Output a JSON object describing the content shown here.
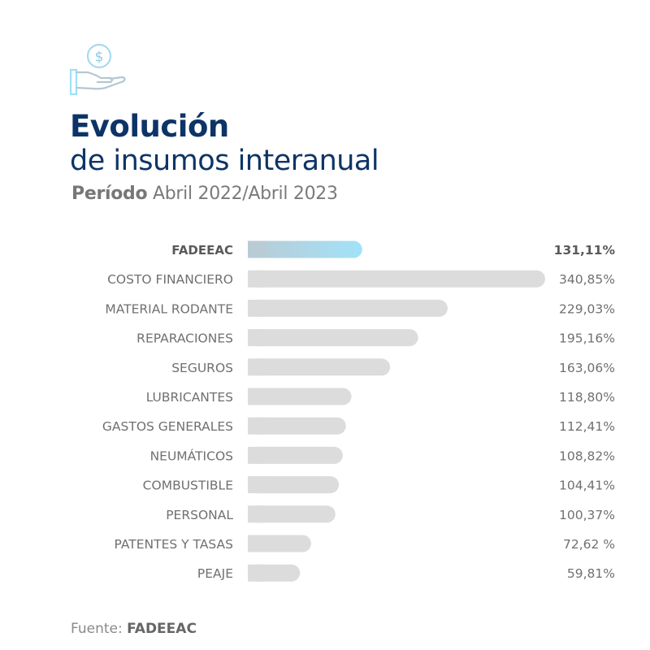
{
  "header": {
    "icon": "hand-with-dollar-coin-icon",
    "title_line1": "Evolución",
    "title_line2": "de insumos interanual",
    "period_label": "Período",
    "period_value": "Abril 2022/Abril 2023"
  },
  "chart_data": {
    "type": "bar",
    "orientation": "horizontal",
    "title": "Evolución de insumos interanual",
    "subtitle": "Período Abril 2022/Abril 2023",
    "categories": [
      "FADEEAC",
      "COSTO FINANCIERO",
      "MATERIAL RODANTE",
      "REPARACIONES",
      "SEGUROS",
      "LUBRICANTES",
      "GASTOS GENERALES",
      "NEUMÁTICOS",
      "COMBUSTIBLE",
      "PERSONAL",
      "PATENTES Y TASAS",
      "PEAJE"
    ],
    "values": [
      131.11,
      340.85,
      229.03,
      195.16,
      163.06,
      118.8,
      112.41,
      108.82,
      104.41,
      100.37,
      72.62,
      59.81
    ],
    "value_labels": [
      "131,11%",
      "340,85%",
      "229,03%",
      "195,16%",
      "163,06%",
      "118,80%",
      "112,41%",
      "108,82%",
      "104,41%",
      "100,37%",
      "72,62 %",
      "59,81%"
    ],
    "highlight_category": "FADEEAC",
    "colors": {
      "highlight_start": "#b9cbd4",
      "highlight_end": "#a2e2f8",
      "bar": "#dcdcdc",
      "label": "#707070",
      "highlight_label": "#5a5a5a"
    },
    "grid": false,
    "legend": "none",
    "xlabel": "",
    "ylabel": ""
  },
  "footer": {
    "source_label": "Fuente:",
    "source_value": "FADEEAC"
  }
}
